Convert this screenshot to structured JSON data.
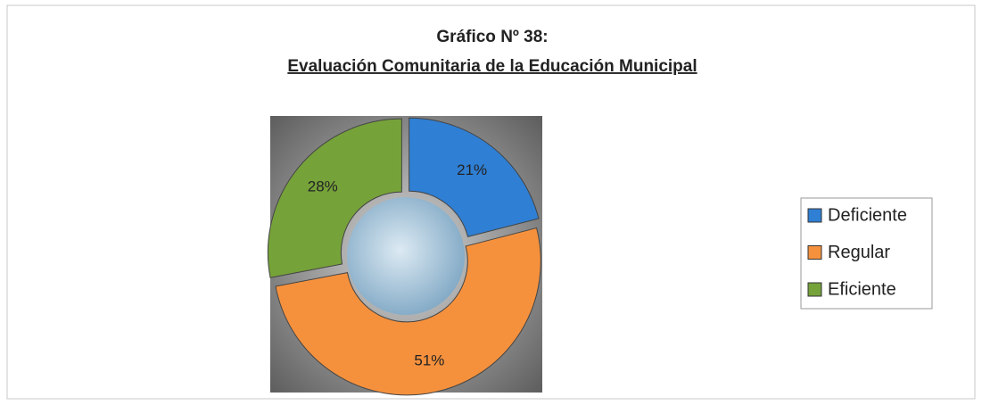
{
  "chart_data": {
    "type": "donut",
    "title": "Gráfico Nº 38:",
    "subtitle": "Evaluación Comunitaria de la Educación Municipal",
    "categories": [
      "Deficiente",
      "Regular",
      "Eficiente"
    ],
    "values": [
      21,
      51,
      28
    ],
    "value_labels": [
      "21%",
      "51%",
      "28%"
    ],
    "colors": [
      "#2f7fd4",
      "#f5913d",
      "#76a23a"
    ],
    "legend": "right"
  }
}
